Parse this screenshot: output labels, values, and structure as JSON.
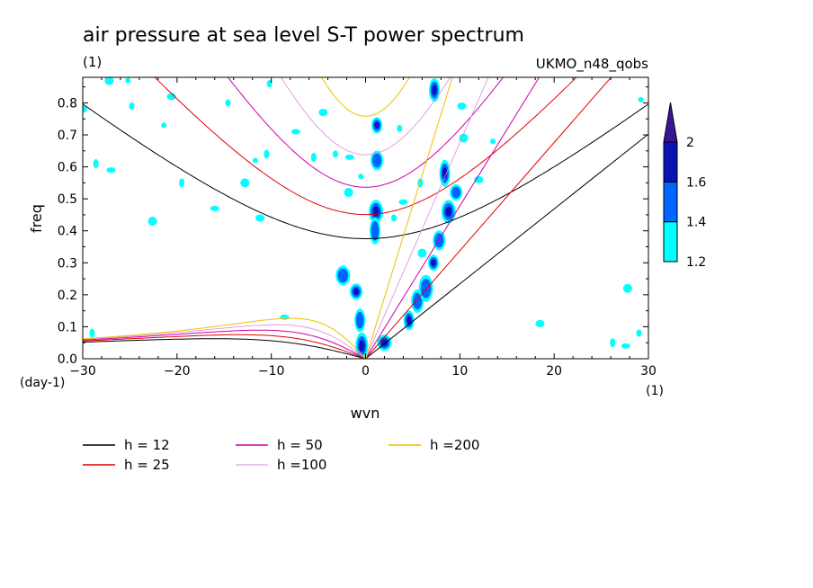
{
  "chart_data": {
    "type": "contour",
    "title": "air pressure at sea level S-T power spectrum",
    "units_label": "(1)",
    "dataset": "UKMO_n48_qobs",
    "xlabel": "wvn",
    "ylabel": "freq",
    "x_unit_label": "(1)",
    "y_unit_label": "(day-1)",
    "xlim": [
      -30,
      30
    ],
    "ylim": [
      0,
      0.88
    ],
    "xticks": [
      -30,
      -20,
      -10,
      0,
      10,
      20,
      30
    ],
    "yticks": [
      0.0,
      0.1,
      0.2,
      0.3,
      0.4,
      0.5,
      0.6,
      0.7,
      0.8
    ],
    "colorbar": {
      "levels": [
        1.2,
        1.4,
        1.6,
        2
      ],
      "colors": [
        "#00ffff",
        "#0066ff",
        "#0a14b4",
        "#3c1496"
      ]
    },
    "dispersion_curves": [
      {
        "name": "h = 12",
        "color": "#000000"
      },
      {
        "name": "h = 25",
        "color": "#e00000"
      },
      {
        "name": "h = 50",
        "color": "#cc00aa"
      },
      {
        "name": "h =100",
        "color": "#dd88dd"
      },
      {
        "name": "h =200",
        "color": "#f0c000"
      }
    ],
    "blobs": [
      {
        "x": 1.2,
        "y": 0.73,
        "level": 3
      },
      {
        "x": 1.2,
        "y": 0.62,
        "level": 2
      },
      {
        "x": 1.1,
        "y": 0.46,
        "level": 3
      },
      {
        "x": 1.0,
        "y": 0.4,
        "level": 2
      },
      {
        "x": -1.0,
        "y": 0.21,
        "level": 3
      },
      {
        "x": -2.4,
        "y": 0.26,
        "level": 2
      },
      {
        "x": -0.6,
        "y": 0.12,
        "level": 2
      },
      {
        "x": -0.4,
        "y": 0.04,
        "level": 3
      },
      {
        "x": 2.0,
        "y": 0.05,
        "level": 3
      },
      {
        "x": 4.6,
        "y": 0.12,
        "level": 3
      },
      {
        "x": 5.5,
        "y": 0.18,
        "level": 2
      },
      {
        "x": 6.4,
        "y": 0.22,
        "level": 2
      },
      {
        "x": 7.2,
        "y": 0.3,
        "level": 3
      },
      {
        "x": 7.8,
        "y": 0.37,
        "level": 2
      },
      {
        "x": 8.8,
        "y": 0.46,
        "level": 3
      },
      {
        "x": 8.4,
        "y": 0.58,
        "level": 3
      },
      {
        "x": 9.6,
        "y": 0.52,
        "level": 2
      },
      {
        "x": 10.4,
        "y": 0.69,
        "level": 1
      },
      {
        "x": 7.3,
        "y": 0.84,
        "level": 3
      },
      {
        "x": 10.2,
        "y": 0.79,
        "level": 1
      },
      {
        "x": 5.8,
        "y": 0.55,
        "level": 1
      },
      {
        "x": 4.0,
        "y": 0.49,
        "level": 1
      },
      {
        "x": 3.6,
        "y": 0.72,
        "level": 1
      },
      {
        "x": 6.0,
        "y": 0.33,
        "level": 1
      },
      {
        "x": 13.5,
        "y": 0.68,
        "level": 1
      },
      {
        "x": 12.0,
        "y": 0.56,
        "level": 1
      },
      {
        "x": -28.6,
        "y": 0.61,
        "level": 1
      },
      {
        "x": -27.0,
        "y": 0.59,
        "level": 1
      },
      {
        "x": -24.8,
        "y": 0.79,
        "level": 1
      },
      {
        "x": -22.6,
        "y": 0.43,
        "level": 1
      },
      {
        "x": -21.4,
        "y": 0.73,
        "level": 1
      },
      {
        "x": -20.6,
        "y": 0.82,
        "level": 1
      },
      {
        "x": -19.5,
        "y": 0.55,
        "level": 1
      },
      {
        "x": -16.0,
        "y": 0.47,
        "level": 1
      },
      {
        "x": -14.6,
        "y": 0.8,
        "level": 1
      },
      {
        "x": -12.8,
        "y": 0.55,
        "level": 1
      },
      {
        "x": -11.7,
        "y": 0.62,
        "level": 1
      },
      {
        "x": -11.2,
        "y": 0.44,
        "level": 1
      },
      {
        "x": -10.5,
        "y": 0.64,
        "level": 1
      },
      {
        "x": -8.6,
        "y": 0.13,
        "level": 1
      },
      {
        "x": -3.2,
        "y": 0.64,
        "level": 1
      },
      {
        "x": -1.8,
        "y": 0.52,
        "level": 1
      },
      {
        "x": -0.5,
        "y": 0.57,
        "level": 1
      },
      {
        "x": -4.5,
        "y": 0.77,
        "level": 1
      },
      {
        "x": -5.5,
        "y": 0.63,
        "level": 1
      },
      {
        "x": -7.4,
        "y": 0.71,
        "level": 1
      },
      {
        "x": -10.2,
        "y": 0.86,
        "level": 1
      },
      {
        "x": -27.2,
        "y": 0.87,
        "level": 1
      },
      {
        "x": -25.2,
        "y": 0.87,
        "level": 1
      },
      {
        "x": -30.0,
        "y": 0.78,
        "level": 1
      },
      {
        "x": 26.2,
        "y": 0.05,
        "level": 1
      },
      {
        "x": 27.6,
        "y": 0.04,
        "level": 1
      },
      {
        "x": 29.0,
        "y": 0.08,
        "level": 1
      },
      {
        "x": 27.8,
        "y": 0.22,
        "level": 1
      },
      {
        "x": 29.2,
        "y": 0.81,
        "level": 1
      },
      {
        "x": 18.5,
        "y": 0.11,
        "level": 1
      },
      {
        "x": -29.0,
        "y": 0.08,
        "level": 1
      },
      {
        "x": -1.7,
        "y": 0.63,
        "level": 1
      },
      {
        "x": 3.0,
        "y": 0.44,
        "level": 1
      }
    ]
  }
}
